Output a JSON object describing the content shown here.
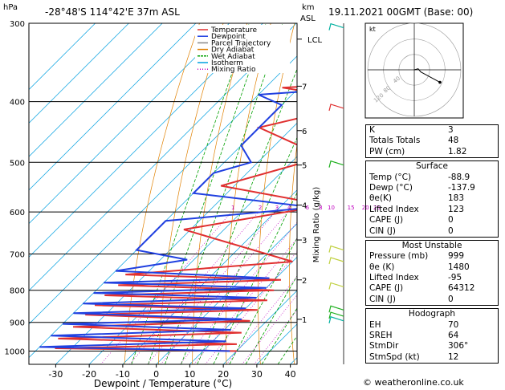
{
  "header": {
    "p_unit": "hPa",
    "location": "-28°48'S  114°42'E  37m  ASL",
    "km_label": "km",
    "asl_label": "ASL",
    "datetime": "19.11.2021  00GMT  (Base: 00)"
  },
  "chart_data": {
    "type": "line",
    "xlabel": "Dewpoint / Temperature (°C)",
    "ylabel": "Mixing Ratio (g/kg)",
    "xlim": [
      -38,
      42
    ],
    "ylim_hpa": [
      1050,
      300
    ],
    "x_ticks": [
      "-30",
      "-20",
      "-10",
      "0",
      "10",
      "20",
      "30",
      "40"
    ],
    "x_tick_values": [
      -30,
      -20,
      -10,
      0,
      10,
      20,
      30,
      40
    ],
    "pressure_levels": [
      300,
      400,
      500,
      600,
      700,
      800,
      900,
      1000
    ],
    "pressure_labels": [
      "300",
      "400",
      "500",
      "600",
      "700",
      "800",
      "900",
      "1000"
    ],
    "km_ticks": [
      {
        "label": "LCL",
        "p": 318
      },
      {
        "label": "7",
        "p": 378
      },
      {
        "label": "6",
        "p": 445
      },
      {
        "label": "5",
        "p": 505
      },
      {
        "label": "4",
        "p": 585
      },
      {
        "label": "3",
        "p": 665
      },
      {
        "label": "2",
        "p": 770
      },
      {
        "label": "1",
        "p": 890
      }
    ],
    "mixing_ratio_labels": [
      "1",
      "2",
      "3",
      "4",
      "6",
      "8",
      "10",
      "15",
      "20",
      "25"
    ],
    "mixing_ratio_values": [
      1,
      2,
      3,
      4,
      6,
      8,
      10,
      15,
      20,
      25
    ],
    "legend": [
      {
        "name": "Temperature",
        "color": "#e03030"
      },
      {
        "name": "Dewpoint",
        "color": "#2040e0"
      },
      {
        "name": "Parcel Trajectory",
        "color": "#888888"
      },
      {
        "name": "Dry Adiabat",
        "color": "#e08000"
      },
      {
        "name": "Wet Adiabat",
        "color": "#00a000"
      },
      {
        "name": "Isotherm",
        "color": "#00a0e0"
      },
      {
        "name": "Mixing Ratio",
        "color": "#c000c0"
      }
    ],
    "temperature_profile": [
      {
        "p": 1000,
        "t": 20
      },
      {
        "p": 990,
        "t": -35
      },
      {
        "p": 975,
        "t": 18
      },
      {
        "p": 955,
        "t": -37
      },
      {
        "p": 935,
        "t": 16
      },
      {
        "p": 915,
        "t": -36
      },
      {
        "p": 895,
        "t": 15
      },
      {
        "p": 875,
        "t": -36
      },
      {
        "p": 860,
        "t": 14
      },
      {
        "p": 845,
        "t": -36
      },
      {
        "p": 830,
        "t": 14
      },
      {
        "p": 815,
        "t": -36
      },
      {
        "p": 800,
        "t": 13
      },
      {
        "p": 785,
        "t": -35
      },
      {
        "p": 770,
        "t": 12
      },
      {
        "p": 755,
        "t": -36
      },
      {
        "p": 720,
        "t": 10
      },
      {
        "p": 640,
        "t": -32
      },
      {
        "p": 585,
        "t": 3
      },
      {
        "p": 545,
        "t": -34
      },
      {
        "p": 490,
        "t": -12
      },
      {
        "p": 440,
        "t": -40
      },
      {
        "p": 400,
        "t": -15
      },
      {
        "p": 380,
        "t": -45
      },
      {
        "p": 370,
        "t": -2
      },
      {
        "p": 340,
        "t": -43
      },
      {
        "p": 300,
        "t": -25
      }
    ],
    "dewpoint_profile": [
      {
        "p": 1000,
        "t": 18
      },
      {
        "p": 985,
        "t": -40
      },
      {
        "p": 965,
        "t": 14
      },
      {
        "p": 945,
        "t": -40
      },
      {
        "p": 925,
        "t": 12
      },
      {
        "p": 905,
        "t": -40
      },
      {
        "p": 890,
        "t": 12
      },
      {
        "p": 870,
        "t": -40
      },
      {
        "p": 855,
        "t": 10
      },
      {
        "p": 840,
        "t": -40
      },
      {
        "p": 822,
        "t": 10
      },
      {
        "p": 808,
        "t": -40
      },
      {
        "p": 793,
        "t": 10
      },
      {
        "p": 778,
        "t": -40
      },
      {
        "p": 765,
        "t": 8
      },
      {
        "p": 745,
        "t": -40
      },
      {
        "p": 715,
        "t": -22
      },
      {
        "p": 690,
        "t": -40
      },
      {
        "p": 620,
        "t": -40
      },
      {
        "p": 590,
        "t": 0
      },
      {
        "p": 560,
        "t": -40
      },
      {
        "p": 520,
        "t": -40
      },
      {
        "p": 500,
        "t": -32
      },
      {
        "p": 470,
        "t": -40
      },
      {
        "p": 405,
        "t": -40
      },
      {
        "p": 390,
        "t": -50
      },
      {
        "p": 375,
        "t": -8
      },
      {
        "p": 350,
        "t": -45
      },
      {
        "p": 310,
        "t": -40
      },
      {
        "p": 300,
        "t": -35
      }
    ],
    "isotherms": [
      -40,
      -30,
      -20,
      -10,
      0,
      10,
      20,
      30,
      40
    ],
    "dry_adiabats_theta": [
      260,
      270,
      280,
      290,
      300,
      310,
      320,
      330,
      340,
      350,
      360,
      370,
      380,
      390,
      400,
      410,
      420
    ],
    "wet_adiabats_t1000": [
      -10,
      -5,
      0,
      5,
      10,
      15,
      20,
      25,
      30,
      35
    ]
  },
  "hodograph": {
    "unit_label": "kt",
    "ring_labels": [
      "120",
      "80",
      "40"
    ],
    "trace": [
      [
        0,
        0
      ],
      [
        3,
        -1
      ],
      [
        5,
        2
      ],
      [
        8,
        4
      ],
      [
        20,
        12
      ]
    ]
  },
  "wind_barb_colors": {
    "upper": "#e03030",
    "mid": "#20b020",
    "low": "#c0d040",
    "surface": "#00b0a0"
  },
  "stats": {
    "top": [
      {
        "k": "K",
        "v": "3"
      },
      {
        "k": "Totals Totals",
        "v": "48"
      },
      {
        "k": "PW (cm)",
        "v": "1.82"
      }
    ],
    "surface": {
      "title": "Surface",
      "rows": [
        {
          "k": "Temp (°C)",
          "v": "-88.9"
        },
        {
          "k": "Dewp (°C)",
          "v": "-137.9"
        },
        {
          "k": "θe(K)",
          "v": "183"
        },
        {
          "k": "Lifted Index",
          "v": "123"
        },
        {
          "k": "CAPE (J)",
          "v": "0"
        },
        {
          "k": "CIN (J)",
          "v": "0"
        }
      ]
    },
    "most_unstable": {
      "title": "Most Unstable",
      "rows": [
        {
          "k": "Pressure (mb)",
          "v": "999"
        },
        {
          "k": "θe (K)",
          "v": "1480"
        },
        {
          "k": "Lifted Index",
          "v": "-95"
        },
        {
          "k": "CAPE (J)",
          "v": "64312"
        },
        {
          "k": "CIN (J)",
          "v": "0"
        }
      ]
    },
    "hodo_table": {
      "title": "Hodograph",
      "rows": [
        {
          "k": "EH",
          "v": "70"
        },
        {
          "k": "SREH",
          "v": "64"
        },
        {
          "k": "StmDir",
          "v": "306°"
        },
        {
          "k": "StmSpd (kt)",
          "v": "12"
        }
      ]
    }
  },
  "footer": "© weatheronline.co.uk"
}
